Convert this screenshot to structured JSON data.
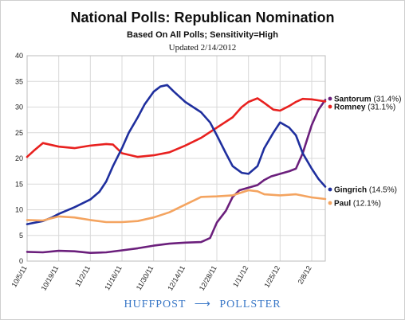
{
  "chart_data": {
    "type": "line",
    "title": "National Polls: Republican Nomination",
    "subtitle": "Based On All Polls; Sensitivity=High",
    "updated": "Updated 2/14/2012",
    "ylim": [
      0,
      40
    ],
    "yticks": [
      0,
      5,
      10,
      15,
      20,
      25,
      30,
      35,
      40
    ],
    "xlim": [
      "10/5/11",
      "2/14/12"
    ],
    "xtick_labels": [
      "10/5/11",
      "10/19/11",
      "11/2/11",
      "11/16/11",
      "11/30/11",
      "12/14/11",
      "12/28/11",
      "1/11/12",
      "1/25/12",
      "2/8/12"
    ],
    "grid": true,
    "legend_placement": "right",
    "series": [
      {
        "name": "Santorum",
        "label": "Santorum (31.4%)",
        "color": "#6b1f7c",
        "x": [
          "10/5/11",
          "10/12/11",
          "10/19/11",
          "10/26/11",
          "11/2/11",
          "11/9/11",
          "11/16/11",
          "11/23/11",
          "11/30/11",
          "12/7/11",
          "12/14/11",
          "12/21/11",
          "12/25/11",
          "12/28/11",
          "1/1/12",
          "1/4/12",
          "1/7/12",
          "1/11/12",
          "1/15/12",
          "1/18/12",
          "1/21/12",
          "1/25/12",
          "1/29/12",
          "2/1/12",
          "2/4/12",
          "2/8/12",
          "2/11/12",
          "2/14/12"
        ],
        "values": [
          1.8,
          1.7,
          2.0,
          1.9,
          1.6,
          1.7,
          2.1,
          2.5,
          3.0,
          3.4,
          3.6,
          3.7,
          4.5,
          7.5,
          9.8,
          12.5,
          13.8,
          14.3,
          14.8,
          15.8,
          16.5,
          17.0,
          17.5,
          18.0,
          21.0,
          26.5,
          29.5,
          31.4
        ]
      },
      {
        "name": "Romney",
        "label": "Romney (31.1%)",
        "color": "#e8211f",
        "x": [
          "10/5/11",
          "10/8/11",
          "10/12/11",
          "10/19/11",
          "10/26/11",
          "11/2/11",
          "11/9/11",
          "11/12/11",
          "11/16/11",
          "11/23/11",
          "11/30/11",
          "12/7/11",
          "12/14/11",
          "12/21/11",
          "12/28/11",
          "1/4/12",
          "1/8/12",
          "1/11/12",
          "1/15/12",
          "1/18/12",
          "1/22/12",
          "1/25/12",
          "1/29/12",
          "2/1/12",
          "2/4/12",
          "2/8/12",
          "2/11/12",
          "2/14/12"
        ],
        "values": [
          20.3,
          21.5,
          23.0,
          22.3,
          22.0,
          22.5,
          22.8,
          22.7,
          21.0,
          20.3,
          20.6,
          21.2,
          22.5,
          24.0,
          26.0,
          28.0,
          30.0,
          31.0,
          31.7,
          30.8,
          29.5,
          29.3,
          30.2,
          31.0,
          31.6,
          31.5,
          31.3,
          31.1
        ]
      },
      {
        "name": "Gingrich",
        "label": "Gingrich (14.5%)",
        "color": "#1f2f9e",
        "x": [
          "10/5/11",
          "10/12/11",
          "10/16/11",
          "10/19/11",
          "10/26/11",
          "11/2/11",
          "11/6/11",
          "11/9/11",
          "11/12/11",
          "11/16/11",
          "11/19/11",
          "11/23/11",
          "11/26/11",
          "11/30/11",
          "12/3/11",
          "12/6/11",
          "12/9/11",
          "12/14/11",
          "12/21/11",
          "12/25/11",
          "12/28/11",
          "1/1/12",
          "1/4/12",
          "1/8/12",
          "1/11/12",
          "1/15/12",
          "1/18/12",
          "1/22/12",
          "1/25/12",
          "1/29/12",
          "2/1/12",
          "2/4/12",
          "2/8/12",
          "2/11/12",
          "2/14/12"
        ],
        "values": [
          7.2,
          7.8,
          8.5,
          9.2,
          10.5,
          12.0,
          13.5,
          15.5,
          18.5,
          22.0,
          25.0,
          28.0,
          30.5,
          33.0,
          34.0,
          34.3,
          33.0,
          31.0,
          29.0,
          27.0,
          24.5,
          21.0,
          18.5,
          17.2,
          17.0,
          18.5,
          22.0,
          25.0,
          27.0,
          26.0,
          24.5,
          21.0,
          18.0,
          16.0,
          14.5
        ]
      },
      {
        "name": "Paul",
        "label": "Paul (12.1%)",
        "color": "#f4a460",
        "x": [
          "10/5/11",
          "10/12/11",
          "10/19/11",
          "10/26/11",
          "11/2/11",
          "11/9/11",
          "11/16/11",
          "11/23/11",
          "11/30/11",
          "12/7/11",
          "12/14/11",
          "12/21/11",
          "12/28/11",
          "1/4/12",
          "1/11/12",
          "1/15/12",
          "1/18/12",
          "1/25/12",
          "2/1/12",
          "2/8/12",
          "2/14/12"
        ],
        "values": [
          8.0,
          7.9,
          8.7,
          8.5,
          8.0,
          7.6,
          7.6,
          7.8,
          8.5,
          9.5,
          11.0,
          12.5,
          12.6,
          12.8,
          13.8,
          13.6,
          13.0,
          12.8,
          13.0,
          12.4,
          12.1
        ]
      }
    ]
  },
  "brand": {
    "left": "HUFFPOST",
    "right": "POLLSTER",
    "arrow": "⟶"
  }
}
